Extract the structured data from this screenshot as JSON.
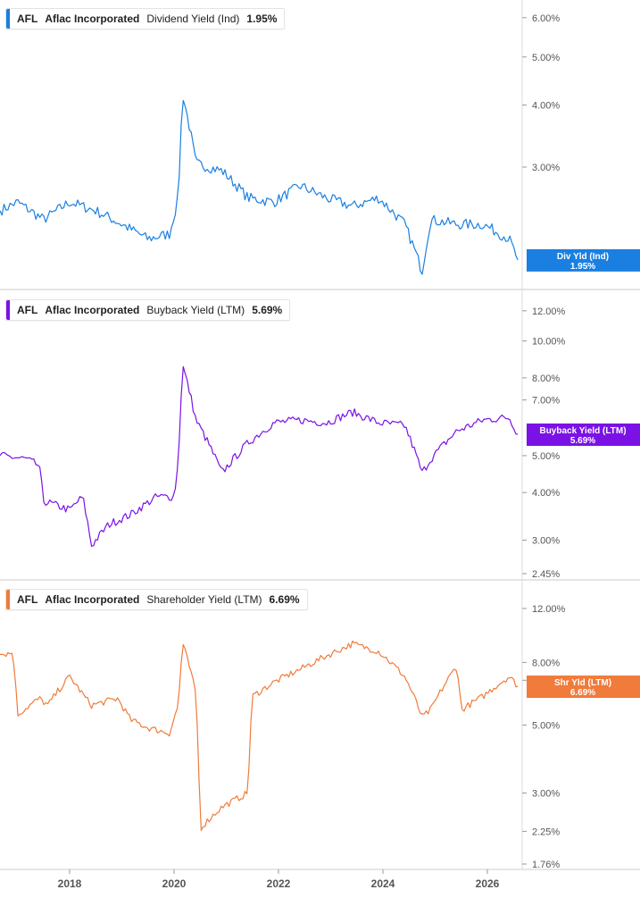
{
  "chart_data": [
    {
      "type": "line",
      "ticker": "AFL",
      "company": "Aflac Incorporated",
      "metric": "Dividend Yield (Ind)",
      "value_label": "1.95%",
      "tag_title": "Div Yld (Ind)",
      "color": "#1a7fe0",
      "scale": "log",
      "ylim": [
        1.75,
        6.3
      ],
      "yticks": [
        "6.00%",
        "5.00%",
        "4.00%",
        "3.00%"
      ],
      "ytick_values": [
        6.0,
        5.0,
        4.0,
        3.0
      ],
      "x": [
        "2016-09",
        "2017-01",
        "2017-07",
        "2018-01",
        "2018-07",
        "2019-01",
        "2019-07",
        "2019-12",
        "2020-02",
        "2020-03",
        "2020-06",
        "2020-12",
        "2021-06",
        "2021-12",
        "2022-06",
        "2022-12",
        "2023-06",
        "2023-12",
        "2024-06",
        "2024-10",
        "2024-12",
        "2025-06",
        "2025-12",
        "2026-06",
        "2026-08"
      ],
      "y": [
        2.45,
        2.55,
        2.35,
        2.55,
        2.45,
        2.3,
        2.15,
        2.2,
        2.6,
        4.2,
        3.05,
        2.95,
        2.6,
        2.55,
        2.75,
        2.6,
        2.5,
        2.6,
        2.3,
        1.85,
        2.35,
        2.3,
        2.3,
        2.15,
        1.95
      ]
    },
    {
      "type": "line",
      "ticker": "AFL",
      "company": "Aflac Incorporated",
      "metric": "Buyback Yield (LTM)",
      "value_label": "5.69%",
      "tag_title": "Buyback Yield (LTM)",
      "color": "#7a12e6",
      "scale": "log",
      "ylim": [
        2.45,
        13.0
      ],
      "yticks": [
        "12.00%",
        "10.00%",
        "8.00%",
        "7.00%",
        "5.00%",
        "4.00%",
        "3.00%",
        "2.45%"
      ],
      "ytick_values": [
        12.0,
        10.0,
        8.0,
        7.0,
        5.0,
        4.0,
        3.0,
        2.45
      ],
      "x": [
        "2016-09",
        "2017-03",
        "2017-06",
        "2017-07",
        "2018-01",
        "2018-04",
        "2018-06",
        "2018-10",
        "2019-03",
        "2019-09",
        "2020-01",
        "2020-02",
        "2020-03",
        "2020-06",
        "2020-12",
        "2021-06",
        "2021-12",
        "2022-06",
        "2022-12",
        "2023-06",
        "2023-12",
        "2024-06",
        "2024-10",
        "2024-12",
        "2025-06",
        "2025-12",
        "2026-06",
        "2026-08"
      ],
      "y": [
        5.0,
        4.9,
        4.7,
        3.8,
        3.6,
        3.9,
        2.9,
        3.3,
        3.5,
        3.9,
        3.9,
        4.8,
        8.6,
        6.2,
        4.5,
        5.4,
        6.1,
        6.2,
        6.1,
        6.5,
        6.1,
        6.0,
        4.5,
        4.9,
        5.8,
        6.2,
        6.3,
        5.69
      ]
    },
    {
      "type": "line",
      "ticker": "AFL",
      "company": "Aflac Incorporated",
      "metric": "Shareholder Yield (LTM)",
      "value_label": "6.69%",
      "tag_title": "Shr Yld (LTM)",
      "color": "#f07b3a",
      "scale": "log",
      "ylim": [
        1.76,
        14.0
      ],
      "yticks": [
        "12.00%",
        "8.00%",
        "7.00%",
        "5.00%",
        "3.00%",
        "2.25%",
        "1.76%"
      ],
      "ytick_values": [
        12.0,
        8.0,
        7.0,
        5.0,
        3.0,
        2.25,
        1.76
      ],
      "x": [
        "2016-09",
        "2016-12",
        "2017-01",
        "2017-06",
        "2017-08",
        "2018-01",
        "2018-04",
        "2018-06",
        "2018-12",
        "2019-03",
        "2019-07",
        "2019-12",
        "2020-02",
        "2020-03",
        "2020-06",
        "2020-07",
        "2020-12",
        "2021-06",
        "2021-07",
        "2021-12",
        "2022-06",
        "2022-12",
        "2023-06",
        "2023-12",
        "2024-06",
        "2024-10",
        "2024-12",
        "2025-06",
        "2025-07",
        "2025-12",
        "2026-06",
        "2026-08"
      ],
      "y": [
        8.5,
        8.6,
        5.4,
        6.1,
        5.8,
        7.2,
        6.3,
        5.8,
        6.1,
        5.2,
        4.9,
        4.7,
        5.8,
        9.2,
        6.3,
        2.3,
        2.7,
        3.0,
        6.2,
        6.9,
        7.6,
        8.4,
        9.2,
        8.7,
        7.2,
        5.3,
        5.6,
        7.8,
        5.6,
        6.2,
        7.2,
        6.69
      ]
    }
  ],
  "x_axis": {
    "ticks": [
      "2018",
      "2020",
      "2022",
      "2024",
      "2026"
    ],
    "tick_values": [
      "2018-01",
      "2020-01",
      "2022-01",
      "2024-01",
      "2026-01"
    ],
    "range": [
      "2016-09",
      "2026-09"
    ]
  }
}
